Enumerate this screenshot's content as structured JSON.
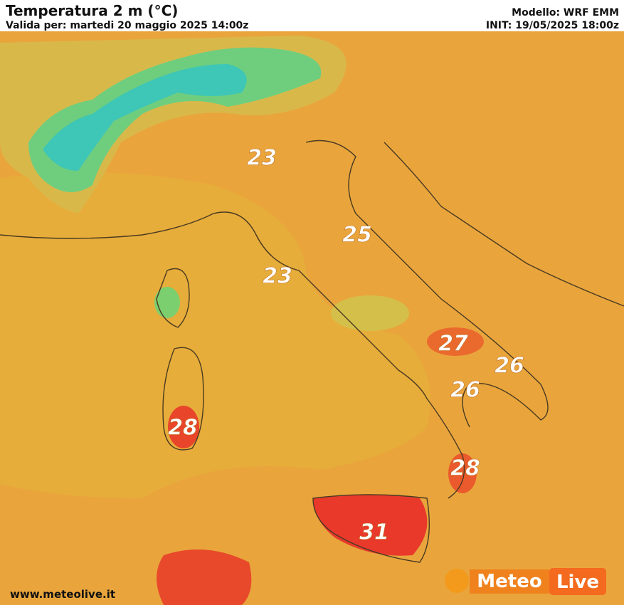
{
  "header": {
    "title": "Temperatura 2 m (°C)",
    "valid": "Valida per: martedi 20 maggio 2025 14:00z",
    "model": "Modello: WRF EMM",
    "init": "INIT: 19/05/2025 18:00z"
  },
  "labels": [
    23,
    25,
    23,
    27,
    26,
    26,
    28,
    28,
    31
  ],
  "footer": {
    "url": "www.meteolive.it",
    "logo_left": "Meteo",
    "logo_right": "Live"
  }
}
